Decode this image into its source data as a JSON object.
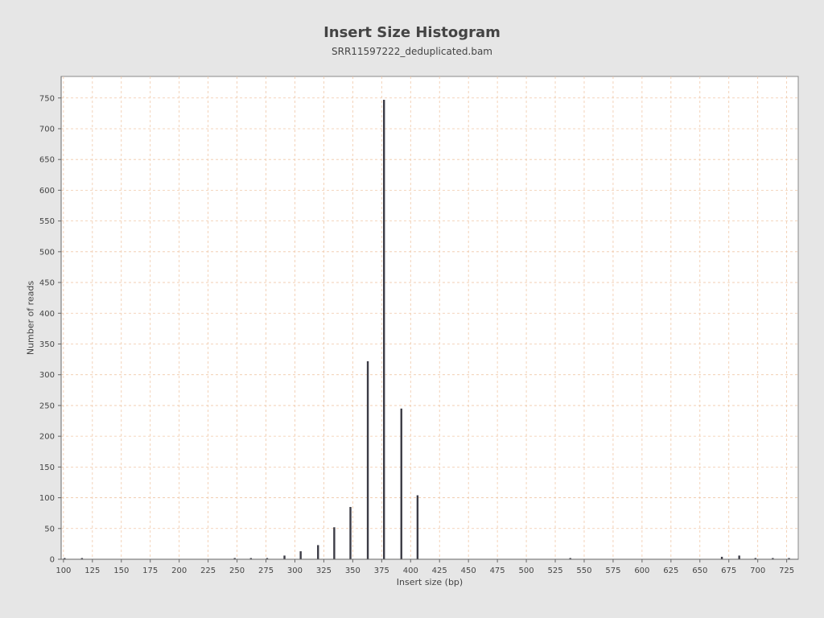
{
  "chart_data": {
    "type": "bar",
    "title": "Insert Size Histogram",
    "subtitle": "SRR11597222_deduplicated.bam",
    "xlabel": "Insert size (bp)",
    "ylabel": "Number of reads",
    "xlim": [
      98,
      735
    ],
    "ylim": [
      0,
      785
    ],
    "xticks": [
      100,
      125,
      150,
      175,
      200,
      225,
      250,
      275,
      300,
      325,
      350,
      375,
      400,
      425,
      450,
      475,
      500,
      525,
      550,
      575,
      600,
      625,
      650,
      675,
      700,
      725
    ],
    "yticks": [
      0,
      50,
      100,
      150,
      200,
      250,
      300,
      350,
      400,
      450,
      500,
      550,
      600,
      650,
      700,
      750
    ],
    "grid": true,
    "colors": {
      "bar": "#3c3c46",
      "grid": "#f0c8a8",
      "plot_bg": "#ffffff",
      "page_bg": "#e6e6e6"
    },
    "x": [
      101,
      116,
      248,
      262,
      276,
      291,
      305,
      320,
      334,
      348,
      363,
      377,
      392,
      406,
      538,
      669,
      684,
      698,
      713,
      727
    ],
    "values": [
      1,
      1,
      1,
      1,
      1,
      6,
      13,
      23,
      52,
      85,
      322,
      747,
      245,
      104,
      1,
      4,
      6,
      1,
      1,
      1
    ]
  }
}
